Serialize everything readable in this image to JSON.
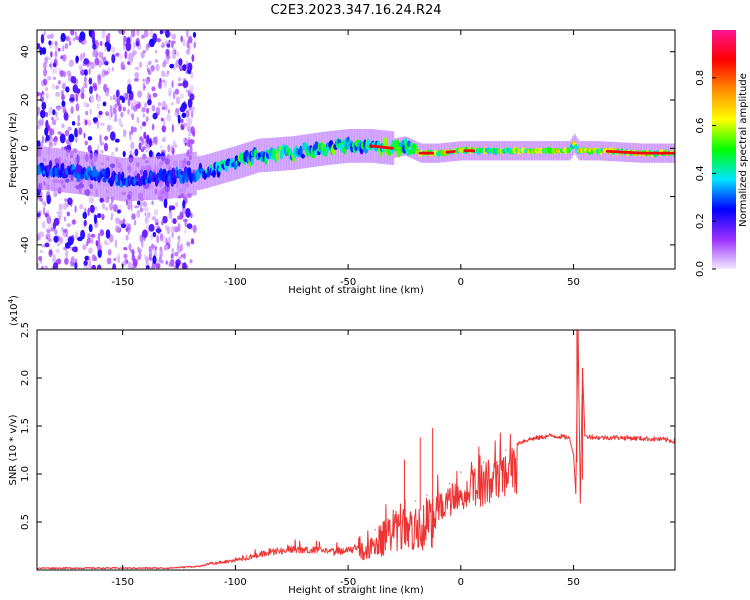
{
  "title": "C2E3.2023.347.16.24.R24",
  "chart_data": [
    {
      "type": "heatmap",
      "name": "spectrogram",
      "xlabel": "Height of straight line (km)",
      "ylabel": "Frequency (Hz)",
      "xlim": [
        -188,
        95
      ],
      "ylim": [
        -50,
        49
      ],
      "xticks": [
        -150,
        -100,
        -50,
        0,
        50
      ],
      "yticks": [
        -40,
        -20,
        0,
        20,
        40
      ],
      "colorbar": {
        "label": "Normalized spectral amplitude",
        "range": [
          0,
          1
        ],
        "ticks": [
          "0.0",
          "0.2",
          "0.4",
          "0.6",
          "0.8"
        ],
        "colors": [
          "#f2e8ff",
          "#9b30ff",
          "#0000ff",
          "#00e5ff",
          "#00ff00",
          "#ffff00",
          "#ff8c00",
          "#ff0000",
          "#ff1493"
        ]
      },
      "ridge": {
        "x": [
          -188,
          -170,
          -150,
          -130,
          -115,
          -100,
          -90,
          -75,
          -60,
          -50,
          -40,
          -30,
          -25,
          -18,
          -10,
          0,
          10,
          30,
          48,
          50,
          52,
          60,
          80,
          95
        ],
        "freq": [
          -8,
          -10,
          -13,
          -12,
          -10,
          -6,
          -3,
          -2,
          0,
          1,
          1,
          0,
          1,
          -2,
          -2,
          -1,
          -1,
          -1,
          -1,
          2,
          -1,
          -1,
          -2,
          -2
        ]
      }
    },
    {
      "type": "line",
      "name": "snr",
      "xlabel": "Height of straight line (km)",
      "ylabel": "SNR (10 * v/v)",
      "exponent_label": "(x10",
      "exponent_power": "4",
      "exponent_close": ")",
      "xlim": [
        -188,
        95
      ],
      "ylim": [
        0,
        2.5
      ],
      "xticks": [
        -150,
        -100,
        -50,
        0,
        50
      ],
      "yticks": [
        "0.5",
        "1.0",
        "1.5",
        "2.0",
        "2.5"
      ],
      "color": "#ee3333",
      "series": [
        {
          "name": "SNR",
          "x": [
            -188,
            -160,
            -130,
            -115,
            -110,
            -100,
            -95,
            -85,
            -75,
            -65,
            -55,
            -45,
            -38,
            -30,
            -25,
            -20,
            -15,
            -10,
            -5,
            0,
            5,
            10,
            20,
            25,
            30,
            40,
            48,
            50,
            51,
            52,
            53,
            54,
            55,
            60,
            70,
            80,
            90,
            95
          ],
          "y": [
            0.02,
            0.02,
            0.02,
            0.04,
            0.08,
            0.12,
            0.15,
            0.22,
            0.25,
            0.24,
            0.22,
            0.28,
            0.42,
            0.62,
            0.75,
            0.72,
            0.78,
            0.8,
            0.9,
            1.02,
            1.08,
            1.12,
            1.25,
            1.32,
            1.36,
            1.4,
            1.38,
            1.2,
            0.8,
            2.5,
            0.7,
            2.1,
            1.4,
            1.38,
            1.38,
            1.37,
            1.36,
            1.34
          ]
        }
      ],
      "peak_annotations": [
        {
          "x": 51.5,
          "y": 2.5
        },
        {
          "x": 54,
          "y": 2.1
        },
        {
          "x": -12.5,
          "y": 1.48
        },
        {
          "x": -18,
          "y": 1.38
        },
        {
          "x": -25,
          "y": 1.15
        }
      ]
    }
  ]
}
